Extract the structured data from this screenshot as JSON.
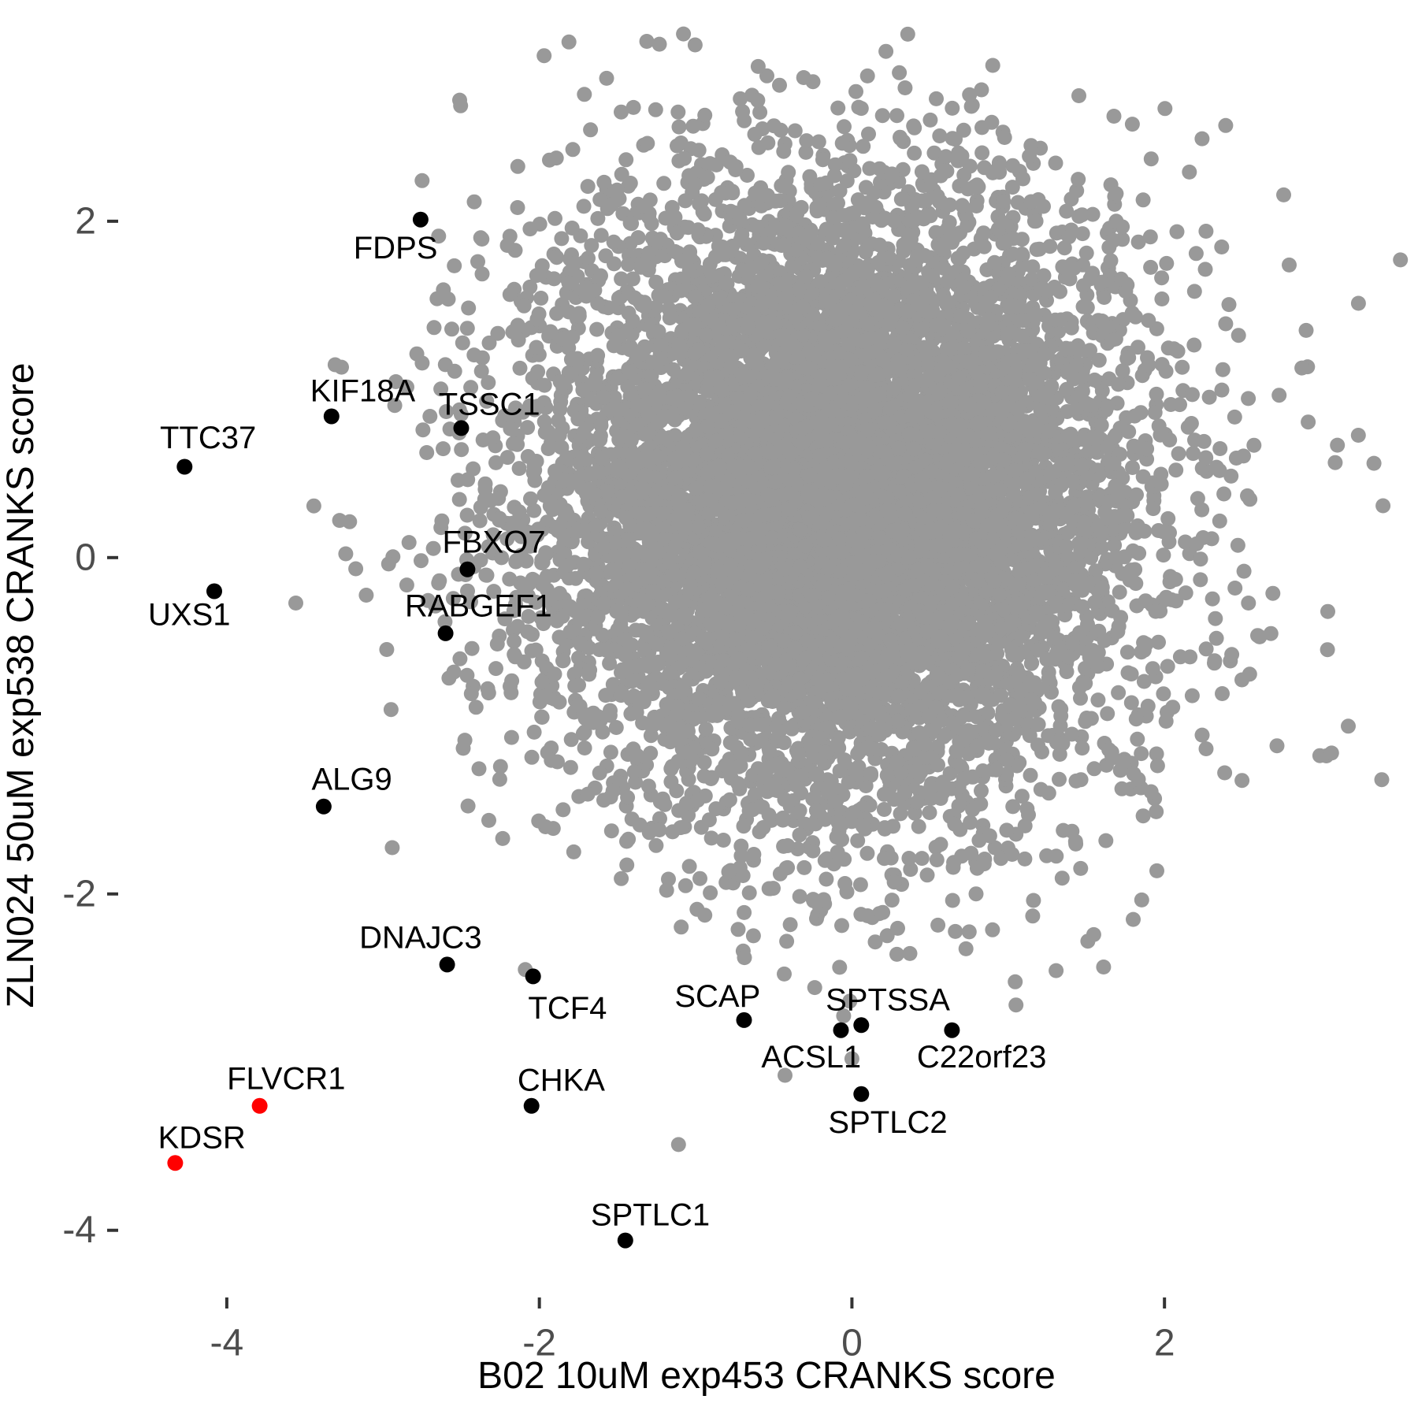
{
  "chart_data": {
    "type": "scatter",
    "title": "",
    "xlabel": "B02 10uM exp453 CRANKS score",
    "ylabel": "ZLN024 50uM exp538 CRANKS score",
    "axes": {
      "x": {
        "ticks": [
          -4,
          -2,
          0,
          2
        ],
        "domain": [
          -4.685,
          3.597
        ]
      },
      "y": {
        "ticks": [
          2,
          0,
          -2,
          -4
        ],
        "domain": [
          -4.39,
          3.175
        ]
      }
    },
    "grid": "off",
    "legend": "none",
    "colors": {
      "background_points": "#999999",
      "labeled_points": "#000000",
      "highlight_points": "#ff0000",
      "tick_text": "#4d4d4d",
      "tick_mark": "#333333",
      "axis_title": "#000000"
    },
    "labeled_points": [
      {
        "name": "FDPS",
        "x": -2.76,
        "y": 2.01,
        "color": "#000000",
        "label_x": -2.92,
        "label_y": 1.84
      },
      {
        "name": "KIF18A",
        "x": -3.33,
        "y": 0.84,
        "color": "#000000",
        "label_x": -3.13,
        "label_y": 0.99
      },
      {
        "name": "TSSC1",
        "x": -2.5,
        "y": 0.77,
        "color": "#000000",
        "label_x": -2.32,
        "label_y": 0.91
      },
      {
        "name": "TTC37",
        "x": -4.27,
        "y": 0.54,
        "color": "#000000",
        "label_x": -4.12,
        "label_y": 0.71
      },
      {
        "name": "UXS1",
        "x": -4.08,
        "y": -0.2,
        "color": "#000000",
        "label_x": -4.24,
        "label_y": -0.34
      },
      {
        "name": "FBXO7",
        "x": -2.46,
        "y": -0.07,
        "color": "#000000",
        "label_x": -2.29,
        "label_y": 0.09
      },
      {
        "name": "RABGEF1",
        "x": -2.6,
        "y": -0.45,
        "color": "#000000",
        "label_x": -2.39,
        "label_y": -0.29
      },
      {
        "name": "ALG9",
        "x": -3.38,
        "y": -1.48,
        "color": "#000000",
        "label_x": -3.2,
        "label_y": -1.32
      },
      {
        "name": "DNAJC3",
        "x": -2.59,
        "y": -2.42,
        "color": "#000000",
        "label_x": -2.76,
        "label_y": -2.26
      },
      {
        "name": "TCF4",
        "x": -2.04,
        "y": -2.49,
        "color": "#000000",
        "label_x": -1.82,
        "label_y": -2.68
      },
      {
        "name": "SCAP",
        "x": -0.69,
        "y": -2.75,
        "color": "#000000",
        "label_x": -0.86,
        "label_y": -2.61
      },
      {
        "name": "ACSL1",
        "x": -0.07,
        "y": -2.81,
        "color": "#000000",
        "label_x": -0.26,
        "label_y": -2.97
      },
      {
        "name": "SPTSSA",
        "x": 0.06,
        "y": -2.78,
        "color": "#000000",
        "label_x": 0.23,
        "label_y": -2.63
      },
      {
        "name": "C22orf23",
        "x": 0.64,
        "y": -2.81,
        "color": "#000000",
        "label_x": 0.83,
        "label_y": -2.97
      },
      {
        "name": "SPTLC2",
        "x": 0.06,
        "y": -3.19,
        "color": "#000000",
        "label_x": 0.23,
        "label_y": -3.36
      },
      {
        "name": "CHKA",
        "x": -2.05,
        "y": -3.26,
        "color": "#000000",
        "label_x": -1.86,
        "label_y": -3.11
      },
      {
        "name": "SPTLC1",
        "x": -1.45,
        "y": -4.06,
        "color": "#000000",
        "label_x": -1.29,
        "label_y": -3.91
      },
      {
        "name": "FLVCR1",
        "x": -3.79,
        "y": -3.26,
        "color": "#ff0000",
        "label_x": -3.62,
        "label_y": -3.1
      },
      {
        "name": "KDSR",
        "x": -4.33,
        "y": -3.6,
        "color": "#ff0000",
        "label_x": -4.16,
        "label_y": -3.45
      }
    ],
    "extra_gray_points": [
      {
        "x": 0.0,
        "y": -2.98
      },
      {
        "x": -2.09,
        "y": -2.45
      },
      {
        "x": -2.7,
        "y": 0.84
      },
      {
        "x": -2.52,
        "y": 0.46
      },
      {
        "x": -1.57,
        "y": 2.85
      },
      {
        "x": -0.6,
        "y": 2.92
      },
      {
        "x": -2.51,
        "y": 2.72
      },
      {
        "x": 3.51,
        "y": 1.77
      }
    ],
    "background_cloud": {
      "n": 9000,
      "center": [
        -0.1,
        0.3
      ],
      "sd": [
        0.98,
        0.92
      ],
      "seed": 20,
      "note": "dense cloud of unlabeled genes, approx reconstruction"
    }
  }
}
